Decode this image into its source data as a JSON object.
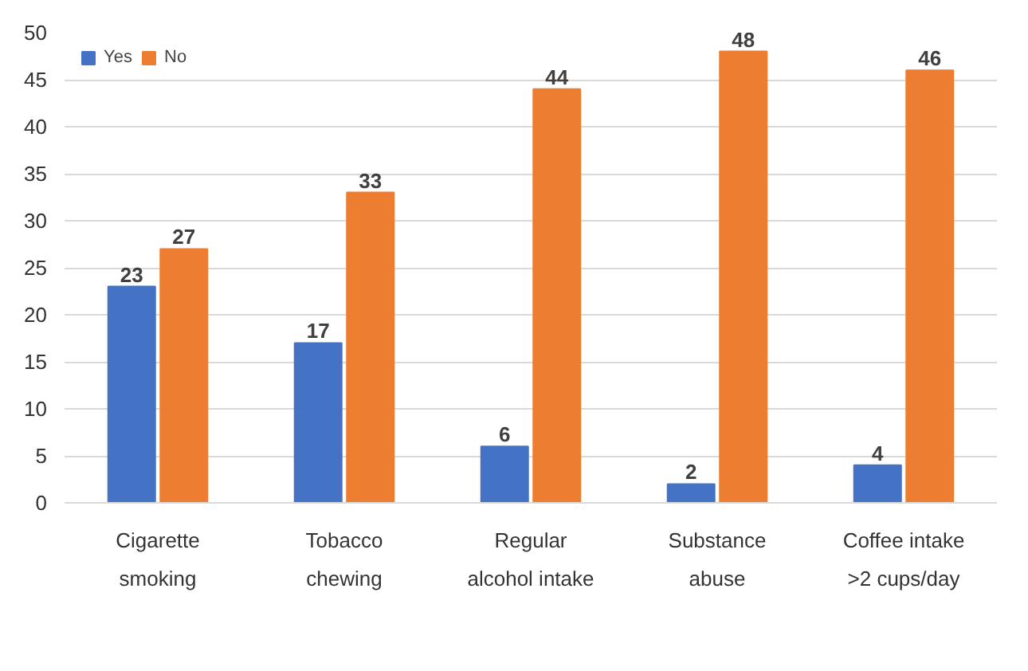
{
  "chart_data": {
    "type": "bar",
    "categories": [
      "Cigarette\nsmoking",
      "Tobacco\nchewing",
      "Regular\nalcohol intake",
      "Substance\nabuse",
      "Coffee intake\n>2 cups/day"
    ],
    "series": [
      {
        "name": "Yes",
        "color": "#4472c4",
        "values": [
          23,
          17,
          6,
          2,
          4
        ]
      },
      {
        "name": "No",
        "color": "#ed7d31",
        "values": [
          27,
          33,
          44,
          48,
          46
        ]
      }
    ],
    "ylim": [
      0,
      50
    ],
    "yticks": [
      0,
      5,
      10,
      15,
      20,
      25,
      30,
      35,
      40,
      45,
      50
    ],
    "grid": "y",
    "legend": "top left",
    "data_labels": true
  }
}
